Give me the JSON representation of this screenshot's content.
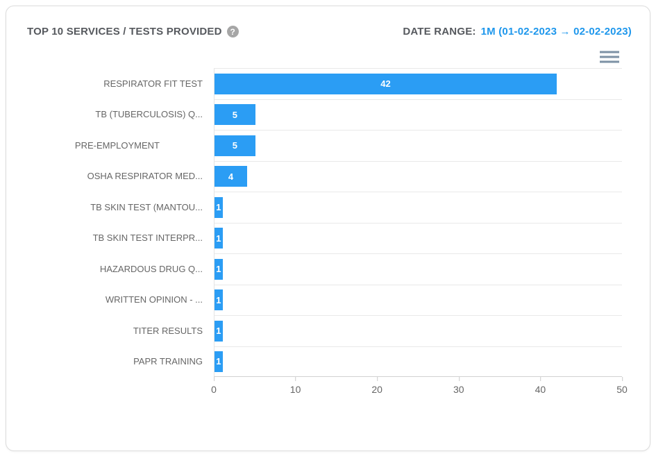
{
  "header": {
    "title": "TOP 10 SERVICES / TESTS PROVIDED",
    "help_glyph": "?",
    "date_range_label": "DATE RANGE:",
    "date_range_value": "1M (01-02-2023 → 02-02-2023)"
  },
  "icons": {
    "help": "question-mark-circle-icon",
    "menu": "hamburger-menu-icon"
  },
  "colors": {
    "bar": "#2b9df4",
    "date_value_text": "#1e97ec",
    "header_text": "#56595e",
    "axis_text": "#666666",
    "gridline": "#e9e9e9"
  },
  "chart_data": {
    "type": "bar",
    "orientation": "horizontal",
    "title": "TOP 10 SERVICES / TESTS PROVIDED",
    "categories": [
      "RESPIRATOR FIT TEST",
      "TB (TUBERCULOSIS) Q...",
      "PRE-EMPLOYMENT",
      "OSHA RESPIRATOR MED...",
      "TB SKIN TEST (MANTOU...",
      "TB SKIN TEST INTERPR...",
      "HAZARDOUS DRUG Q...",
      "WRITTEN OPINION - ...",
      "TITER RESULTS",
      "PAPR TRAINING"
    ],
    "values": [
      42,
      5,
      5,
      4,
      1,
      1,
      1,
      1,
      1,
      1
    ],
    "data_labels": [
      "42",
      "5",
      "5",
      "4",
      "1",
      "1",
      "1",
      "1",
      "1",
      "1"
    ],
    "xlim": [
      0,
      50
    ],
    "xticks": [
      0,
      10,
      20,
      30,
      40,
      50
    ],
    "xlabel": "",
    "ylabel": "",
    "grid": "horizontal-category-separators",
    "legend": "none",
    "data_label_position": "inside-center"
  }
}
